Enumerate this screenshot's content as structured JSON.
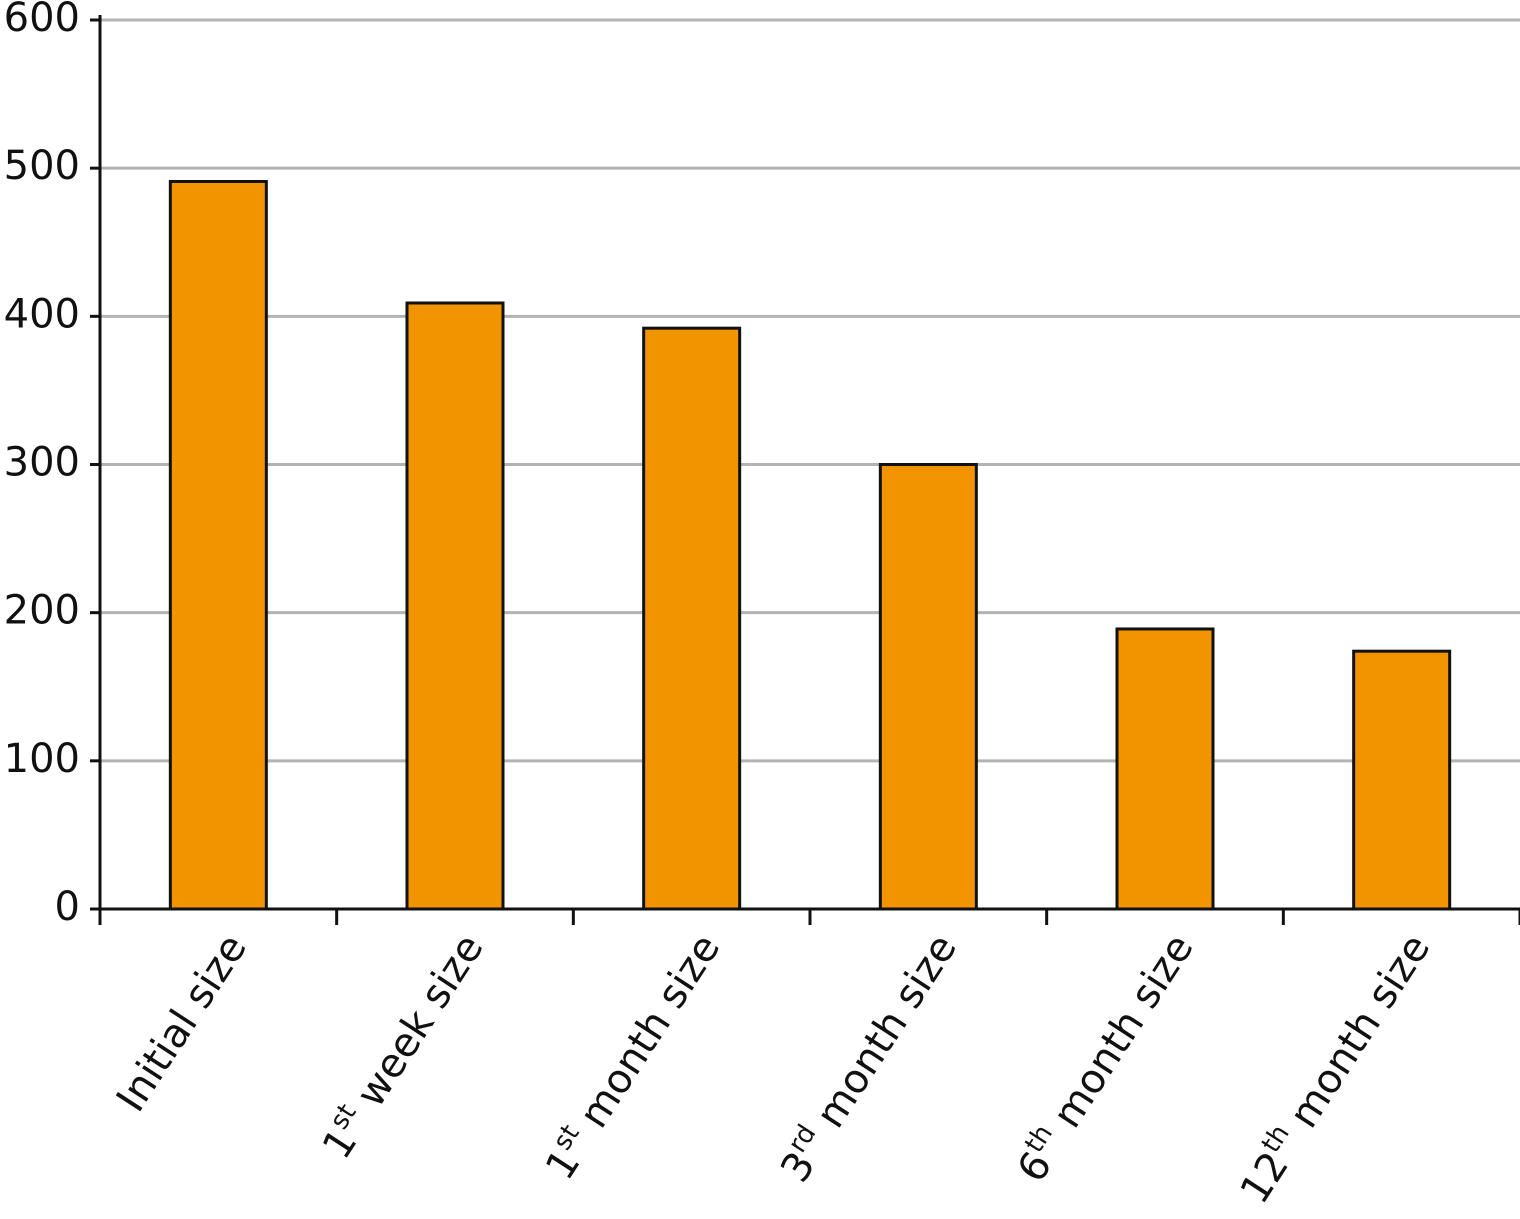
{
  "chart_data": {
    "type": "bar",
    "categories": [
      "Initial size",
      "1st week size",
      "1st month size",
      "3rd month size",
      "6th month size",
      "12th month size"
    ],
    "values": [
      491,
      409,
      392,
      300,
      189,
      174
    ],
    "color": "#f29400",
    "ylim": [
      0,
      600
    ],
    "yticks": [
      0,
      100,
      200,
      300,
      400,
      500,
      600
    ],
    "grid": true
  }
}
